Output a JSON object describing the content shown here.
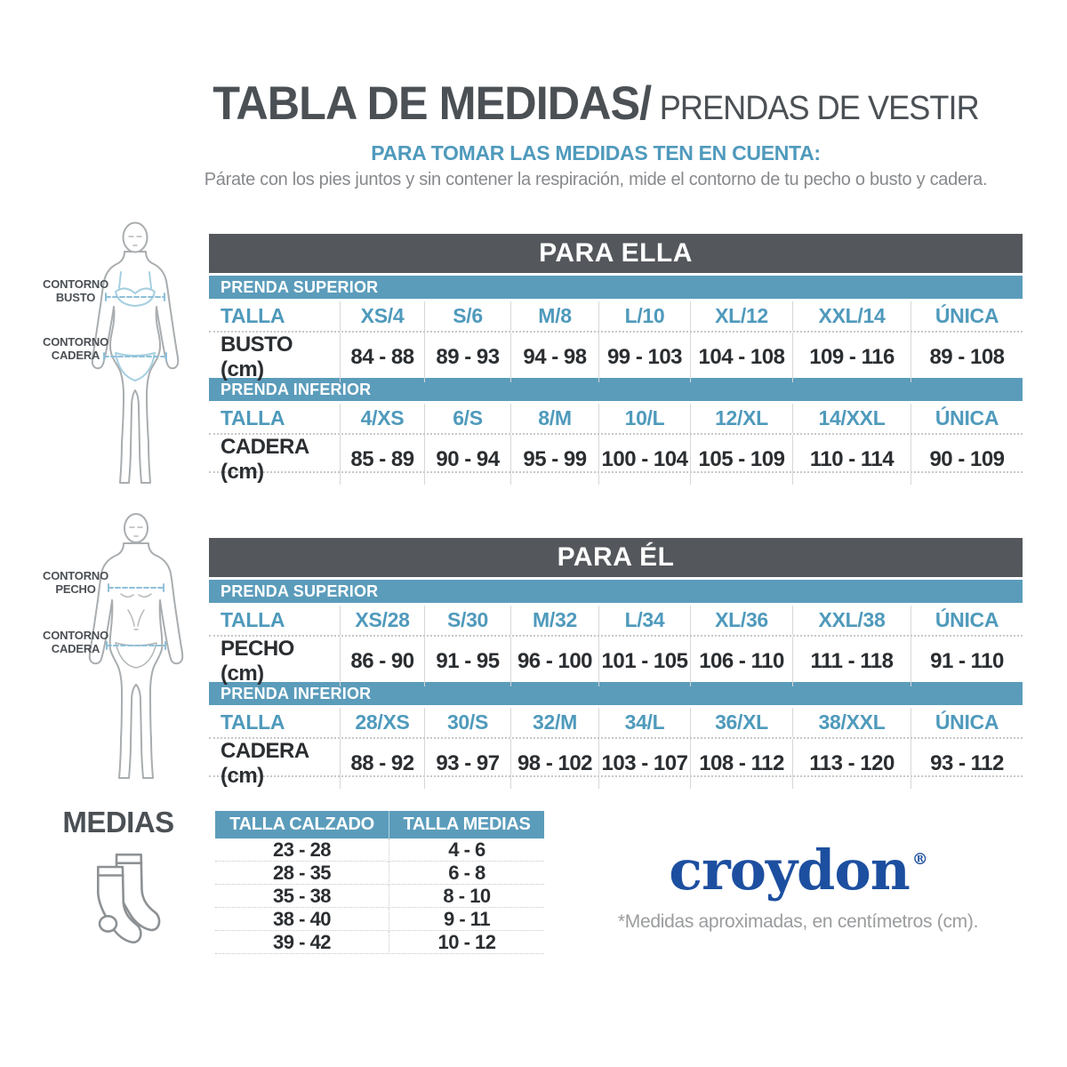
{
  "colors": {
    "dark_slate": "#54585c",
    "steel_blue": "#5b9cbb",
    "blue_text": "#4f9abc",
    "dark_text": "#2b2e31",
    "title_gray": "#4b5055",
    "body_gray": "#87898c",
    "footnote_gray": "#9a9c9e",
    "brand_blue": "#1d4fa0"
  },
  "header": {
    "title_main": "TABLA DE MEDIDAS/",
    "title_sub": "PRENDAS DE VESTIR",
    "instruction_heading": "PARA TOMAR LAS MEDIDAS TEN EN CUENTA:",
    "instruction_text": "Párate con los pies juntos y sin contener la respiración, mide el contorno de tu pecho o busto y cadera."
  },
  "figures": {
    "female": {
      "label_top": "CONTORNO BUSTO",
      "label_bottom": "CONTORNO CADERA"
    },
    "male": {
      "label_top": "CONTORNO PECHO",
      "label_bottom": "CONTORNO CADERA"
    }
  },
  "tables": {
    "ella": {
      "title": "PARA ELLA",
      "sections": [
        {
          "label": "PRENDA SUPERIOR",
          "talla_label": "TALLA",
          "sizes": [
            "XS/4",
            "S/6",
            "M/8",
            "L/10",
            "XL/12",
            "XXL/14",
            "ÚNICA"
          ],
          "measure_label": "BUSTO (cm)",
          "values": [
            "84 - 88",
            "89 - 93",
            "94 - 98",
            "99 - 103",
            "104 - 108",
            "109 - 116",
            "89 - 108"
          ]
        },
        {
          "label": "PRENDA INFERIOR",
          "talla_label": "TALLA",
          "sizes": [
            "4/XS",
            "6/S",
            "8/M",
            "10/L",
            "12/XL",
            "14/XXL",
            "ÚNICA"
          ],
          "measure_label": "CADERA (cm)",
          "values": [
            "85 - 89",
            "90 - 94",
            "95 - 99",
            "100 - 104",
            "105 - 109",
            "110 - 114",
            "90 - 109"
          ]
        }
      ]
    },
    "el": {
      "title": "PARA ÉL",
      "sections": [
        {
          "label": "PRENDA SUPERIOR",
          "talla_label": "TALLA",
          "sizes": [
            "XS/28",
            "S/30",
            "M/32",
            "L/34",
            "XL/36",
            "XXL/38",
            "ÚNICA"
          ],
          "measure_label": "PECHO (cm)",
          "values": [
            "86 - 90",
            "91 - 95",
            "96 - 100",
            "101 - 105",
            "106 - 110",
            "111 - 118",
            "91 - 110"
          ]
        },
        {
          "label": "PRENDA INFERIOR",
          "talla_label": "TALLA",
          "sizes": [
            "28/XS",
            "30/S",
            "32/M",
            "34/L",
            "36/XL",
            "38/XXL",
            "ÚNICA"
          ],
          "measure_label": "CADERA (cm)",
          "values": [
            "88 - 92",
            "93 - 97",
            "98 - 102",
            "103 - 107",
            "108 - 112",
            "113 - 120",
            "93 - 112"
          ]
        }
      ]
    },
    "medias": {
      "title": "MEDIAS",
      "headers": [
        "TALLA CALZADO",
        "TALLA MEDIAS"
      ],
      "rows": [
        [
          "23 - 28",
          "4 - 6"
        ],
        [
          "28 - 35",
          "6 - 8"
        ],
        [
          "35 - 38",
          "8 - 10"
        ],
        [
          "38 - 40",
          "9 - 11"
        ],
        [
          "39 - 42",
          "10 - 12"
        ]
      ]
    }
  },
  "brand": {
    "name": "croydon",
    "registered_mark": "®",
    "footnote": "*Medidas aproximadas, en centímetros (cm)."
  }
}
